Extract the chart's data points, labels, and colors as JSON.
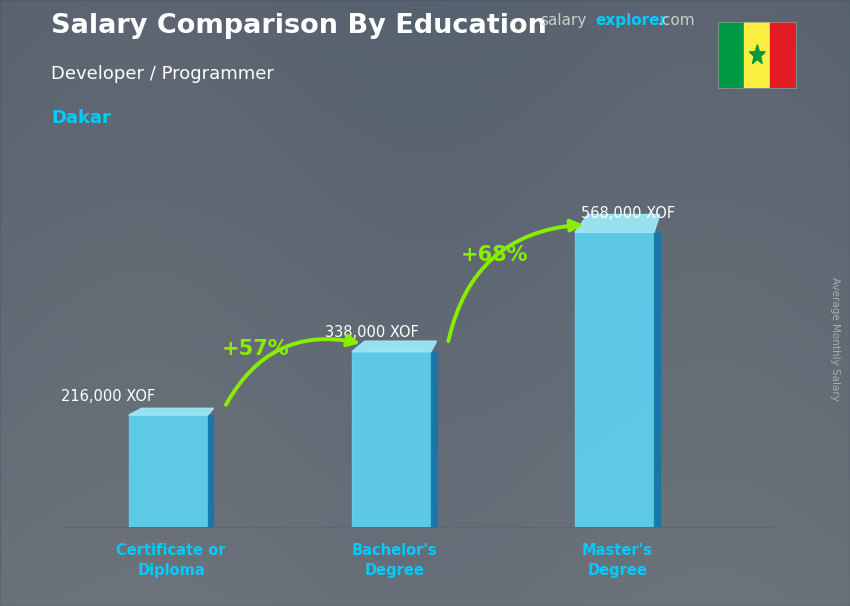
{
  "title": "Salary Comparison By Education",
  "subtitle": "Developer / Programmer",
  "location": "Dakar",
  "ylabel": "Average Monthly Salary",
  "categories": [
    "Certificate or\nDiploma",
    "Bachelor's\nDegree",
    "Master's\nDegree"
  ],
  "values": [
    216000,
    338000,
    568000
  ],
  "value_labels": [
    "216,000 XOF",
    "338,000 XOF",
    "568,000 XOF"
  ],
  "pct_labels": [
    "+57%",
    "+68%"
  ],
  "bar_front_color": "#1ab8e8",
  "bar_left_color": "#5dd6f5",
  "bar_right_color": "#0e7aaa",
  "bar_top_color": "#9eeaf9",
  "background_color": "#6a7a8a",
  "title_color": "#ffffff",
  "subtitle_color": "#ffffff",
  "location_color": "#00ccff",
  "value_label_color": "#ffffff",
  "pct_color": "#88ee00",
  "arrow_color": "#88ee00",
  "xlabel_color": "#00ccff",
  "brand_salary_color": "#cccccc",
  "brand_explorer_color": "#00ccff",
  "brand_com_color": "#cccccc",
  "ylabel_color": "#aaaaaa",
  "figsize": [
    8.5,
    6.06
  ],
  "dpi": 100,
  "ylim": [
    0,
    700000
  ],
  "bar_width": 0.38
}
